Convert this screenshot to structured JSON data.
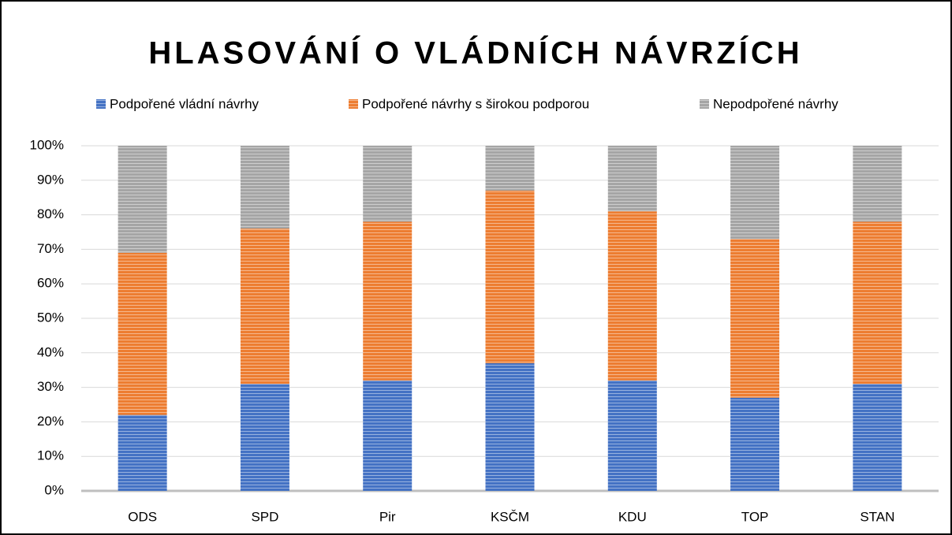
{
  "chart_data": {
    "type": "stacked_bar",
    "title": "HLASOVÁNÍ O VLÁDNÍCH NÁVRZÍCH",
    "categories": [
      "ODS",
      "SPD",
      "Pir",
      "KSČM",
      "KDU",
      "TOP",
      "STAN"
    ],
    "series": [
      {
        "name": "Podpořené vládní návrhy",
        "color": "#4472c4",
        "values": [
          22,
          31,
          32,
          37,
          32,
          27,
          31
        ]
      },
      {
        "name": "Podpořené návrhy s širokou podporou",
        "color": "#ed7d31",
        "values": [
          47,
          45,
          46,
          50,
          49,
          46,
          47
        ]
      },
      {
        "name": "Nepodpořené návrhy",
        "color": "#a5a5a5",
        "values": [
          31,
          24,
          22,
          13,
          19,
          27,
          22
        ]
      }
    ],
    "ylim": [
      0,
      100
    ],
    "yticks": [
      {
        "value": 0,
        "label": "0%"
      },
      {
        "value": 10,
        "label": "10%"
      },
      {
        "value": 20,
        "label": "20%"
      },
      {
        "value": 30,
        "label": "30%"
      },
      {
        "value": 40,
        "label": "40%"
      },
      {
        "value": 50,
        "label": "50%"
      },
      {
        "value": 60,
        "label": "60%"
      },
      {
        "value": 70,
        "label": "70%"
      },
      {
        "value": 80,
        "label": "80%"
      },
      {
        "value": 90,
        "label": "90%"
      },
      {
        "value": 100,
        "label": "100%"
      }
    ],
    "grid": true,
    "legend": "top"
  }
}
